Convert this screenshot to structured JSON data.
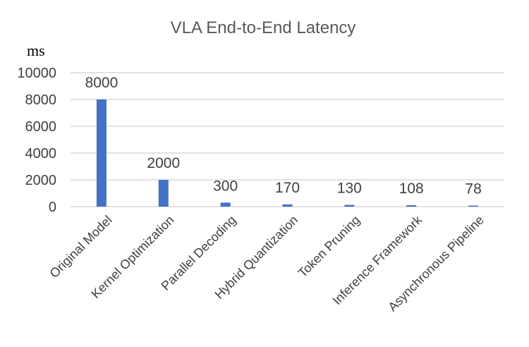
{
  "chart_data": {
    "type": "bar",
    "title": "VLA  End-to-End Latency",
    "ylabel": "ms",
    "xlabel": "",
    "categories": [
      "Original Model",
      "Kernel Optimization",
      "Parallel Decoding",
      "Hybrid Quantization",
      "Token Pruning",
      "Inference Framework",
      "Asynchronous Pipeline"
    ],
    "values": [
      8000,
      2000,
      300,
      170,
      130,
      108,
      78
    ],
    "data_labels": [
      "8000",
      "2000",
      "300",
      "170",
      "130",
      "108",
      "78"
    ],
    "ylim": [
      0,
      10000
    ],
    "yticks": [
      0,
      2000,
      4000,
      6000,
      8000,
      10000
    ],
    "grid": true,
    "legend": "none",
    "bar_color": "#4472c4"
  }
}
